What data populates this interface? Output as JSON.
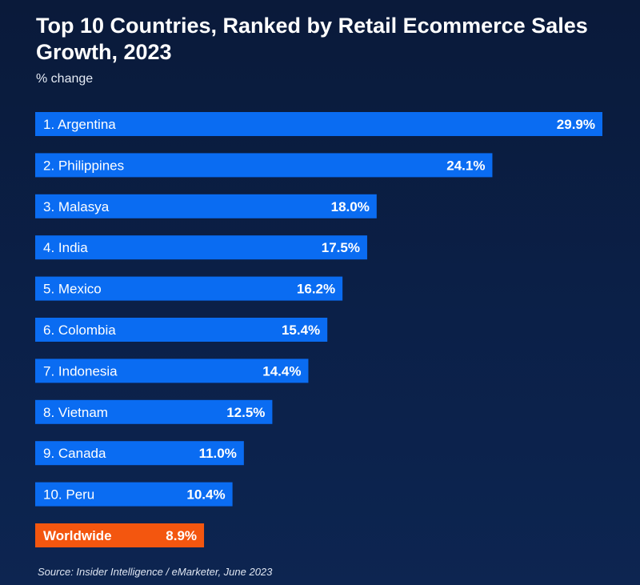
{
  "title": "Top 10 Countries, Ranked by Retail Ecommerce Sales Growth, 2023",
  "subtitle": "% change",
  "source": "Source: Insider Intelligence / eMarketer, June 2023",
  "colors": {
    "bar": "#0a6cf2",
    "highlight": "#f3560f",
    "background": "#0b1f45"
  },
  "chart_data": {
    "type": "bar",
    "orientation": "horizontal",
    "categories": [
      "1. Argentina",
      "2. Philippines",
      "3. Malasya",
      "4. India",
      "5. Mexico",
      "6. Colombia",
      "7. Indonesia",
      "8. Vietnam",
      "9. Canada",
      "10. Peru",
      "Worldwide"
    ],
    "values": [
      29.9,
      24.1,
      18.0,
      17.5,
      16.2,
      15.4,
      14.4,
      12.5,
      11.0,
      10.4,
      8.9
    ],
    "value_labels": [
      "29.9%",
      "24.1%",
      "18.0%",
      "17.5%",
      "16.2%",
      "15.4%",
      "14.4%",
      "12.5%",
      "11.0%",
      "10.4%",
      "8.9%"
    ],
    "highlight_index": 10,
    "xlim": [
      0,
      30
    ],
    "grid": false
  }
}
